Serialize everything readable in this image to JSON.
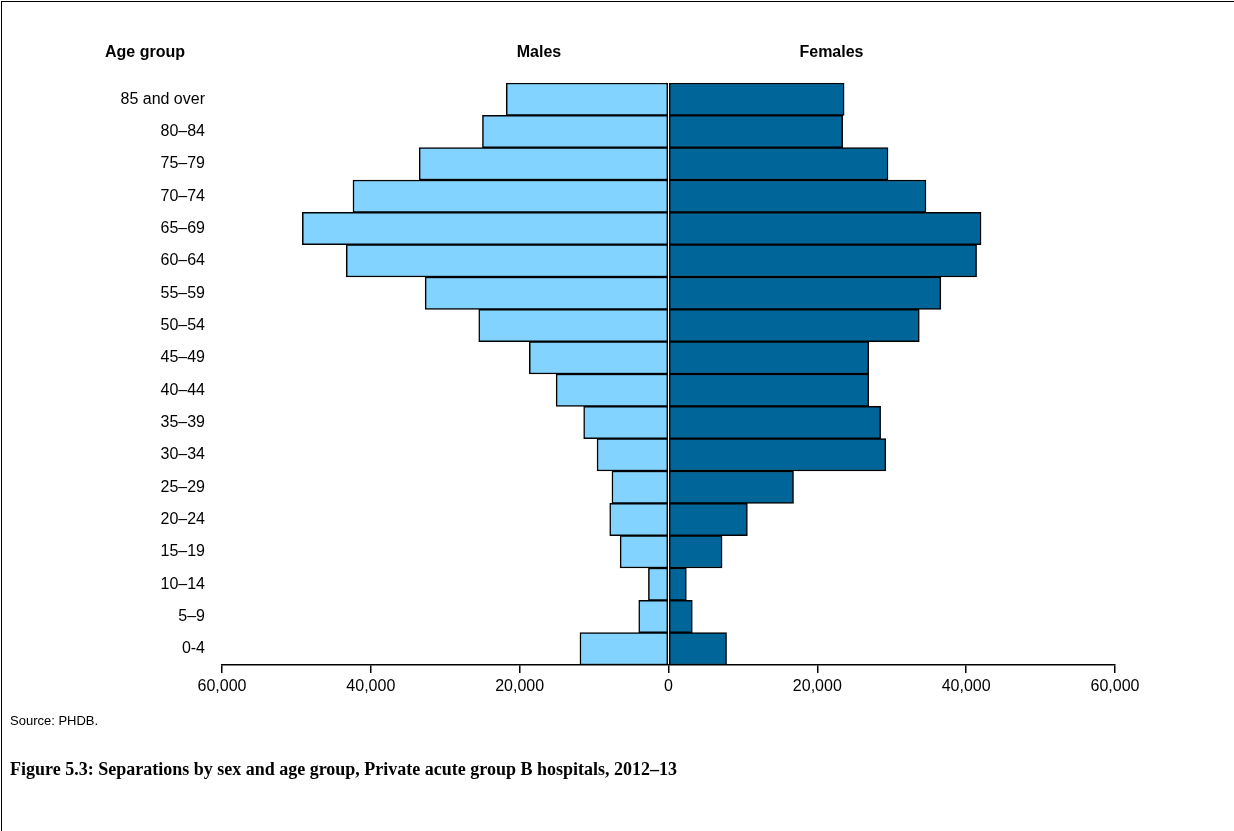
{
  "chart_data": {
    "type": "bar",
    "orientation": "horizontal",
    "stacked": true,
    "title": "Figure 5.3: Separations by sex and age group, Private acute group B hospitals, 2012–13",
    "ylabel": "Age group",
    "annotations": [
      "Source: PHDB."
    ],
    "categories": [
      "85 and over",
      "80–84",
      "75–79",
      "70–74",
      "65–69",
      "60–64",
      "55–59",
      "50–54",
      "45–49",
      "40–44",
      "35–39",
      "30–34",
      "25–29",
      "20–24",
      "15–19",
      "10–14",
      "5–9",
      "0-4"
    ],
    "series": [
      {
        "name": "Males",
        "color": "#82d3ff",
        "values": [
          -21800,
          -25000,
          -33500,
          -42400,
          -49200,
          -43300,
          -32700,
          -25500,
          -18700,
          -15100,
          -11400,
          -9600,
          -7600,
          -7900,
          -6500,
          -2700,
          -4000,
          -11900
        ]
      },
      {
        "name": "Females",
        "color": "#006699",
        "values": [
          23600,
          23400,
          29500,
          34600,
          42000,
          41400,
          36600,
          33700,
          26900,
          26900,
          28500,
          29200,
          16800,
          10600,
          7200,
          2400,
          3200,
          7800
        ]
      }
    ],
    "xlim": [
      -60000,
      60000
    ],
    "xticks": [
      {
        "value": -60000,
        "label": "60,000"
      },
      {
        "value": -40000,
        "label": "40,000"
      },
      {
        "value": -20000,
        "label": "20,000"
      },
      0,
      {
        "value": 20000,
        "label": "20,000"
      },
      {
        "value": 40000,
        "label": "40,000"
      },
      {
        "value": 60000,
        "label": "60,000"
      }
    ],
    "grid": false,
    "legend": false
  }
}
